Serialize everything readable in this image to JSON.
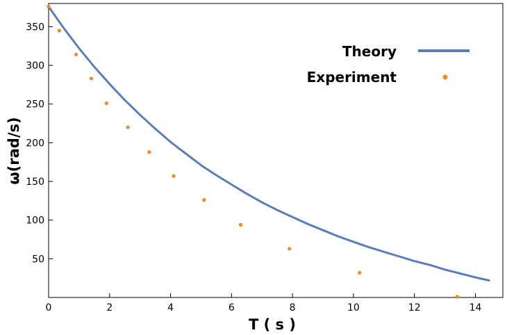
{
  "chart_data": {
    "type": "line",
    "title": "",
    "xlabel": "T ( s )",
    "ylabel": "ω(rad/s)",
    "xlim": [
      0,
      14.9
    ],
    "ylim": [
      0,
      380
    ],
    "xticks": [
      0,
      2,
      4,
      6,
      8,
      10,
      12,
      14
    ],
    "yticks": [
      50,
      100,
      150,
      200,
      250,
      300,
      350
    ],
    "grid": false,
    "legend_position": "top-right",
    "series": [
      {
        "name": "Theory",
        "kind": "line",
        "color": "#5b7db8",
        "x": [
          0,
          0.5,
          1,
          1.5,
          2,
          2.5,
          3,
          3.5,
          4,
          4.5,
          5,
          5.5,
          6,
          6.5,
          7,
          7.5,
          8,
          8.5,
          9,
          9.5,
          10,
          10.5,
          11,
          11.5,
          12,
          12.5,
          13,
          13.5,
          14,
          14.45
        ],
        "y": [
          376,
          348,
          322,
          298,
          276,
          255,
          236,
          218,
          201,
          186,
          171,
          158,
          146,
          134,
          123,
          113,
          104,
          95,
          87,
          79,
          72,
          65,
          59,
          53,
          47,
          42,
          36,
          31,
          26,
          22
        ]
      },
      {
        "name": "Experiment",
        "kind": "scatter",
        "color": "#f08a1c",
        "x": [
          0,
          0.35,
          0.9,
          1.4,
          1.9,
          2.6,
          3.3,
          4.1,
          5.1,
          6.3,
          7.9,
          10.2,
          13.4
        ],
        "y": [
          376,
          345,
          314,
          283,
          251,
          220,
          188,
          157,
          126,
          94,
          63,
          32,
          1
        ]
      }
    ]
  }
}
